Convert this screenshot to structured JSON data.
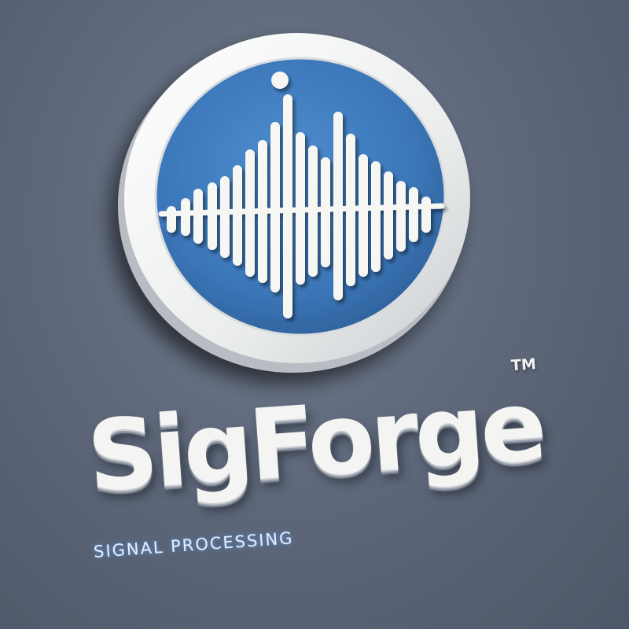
{
  "brand": {
    "name": "SigForge",
    "trademark": "TM",
    "tagline": "SIGNAL PROCESSING"
  },
  "logo": {
    "icon": "sound-wave-icon",
    "colors": {
      "background": "#5f697b",
      "ring": "#f2f2ef",
      "disc": "#3f7cc0",
      "wave": "#f6f6f3",
      "text": "#f4f4f2",
      "tagline_glow": "#5a96e6"
    }
  }
}
